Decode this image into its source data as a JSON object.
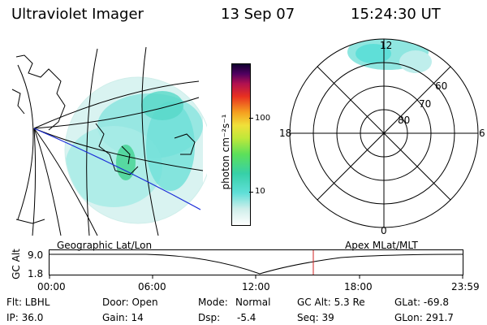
{
  "header": {
    "title": "Ultraviolet Imager",
    "date": "13 Sep 07",
    "time": "15:24:30 UT"
  },
  "colorbar": {
    "unit_label": "photon cm⁻²s⁻¹",
    "tick_100": "100",
    "tick_10": "10"
  },
  "polar": {
    "mlt_12": "12",
    "mlt_18": "18",
    "mlt_6": "6",
    "mlt_0": "0",
    "lat_60": "60",
    "lat_70": "70",
    "lat_80": "80"
  },
  "orbit": {
    "left_title": "Geographic Lat/Lon",
    "right_title": "Apex MLat/MLT",
    "axis_label": "GC Alt",
    "alt_top": "9.0",
    "alt_bottom": "1.8",
    "times": [
      "00:00",
      "06:00",
      "12:00",
      "18:00",
      "23:59"
    ]
  },
  "footer": {
    "filter": "Flt: LBHL",
    "door": "Door: Open",
    "mode_label": "Mode:",
    "mode_value": "Normal",
    "gc_alt": "GC Alt: 5.3 Re",
    "glat": "GLat: -69.8",
    "ip": "IP: 36.0",
    "gain": "Gain: 14",
    "dsp_label": "Dsp:",
    "dsp_value": "-5.4",
    "seq": "Seq: 39",
    "glon": "GLon: 291.7"
  },
  "colors": {
    "emission_main": "#5fdfd8",
    "emission_light": "#bfeeec",
    "emission_green": "#3ad08a",
    "orbit_track": "#1a2bd8",
    "time_marker": "#d02020"
  }
}
